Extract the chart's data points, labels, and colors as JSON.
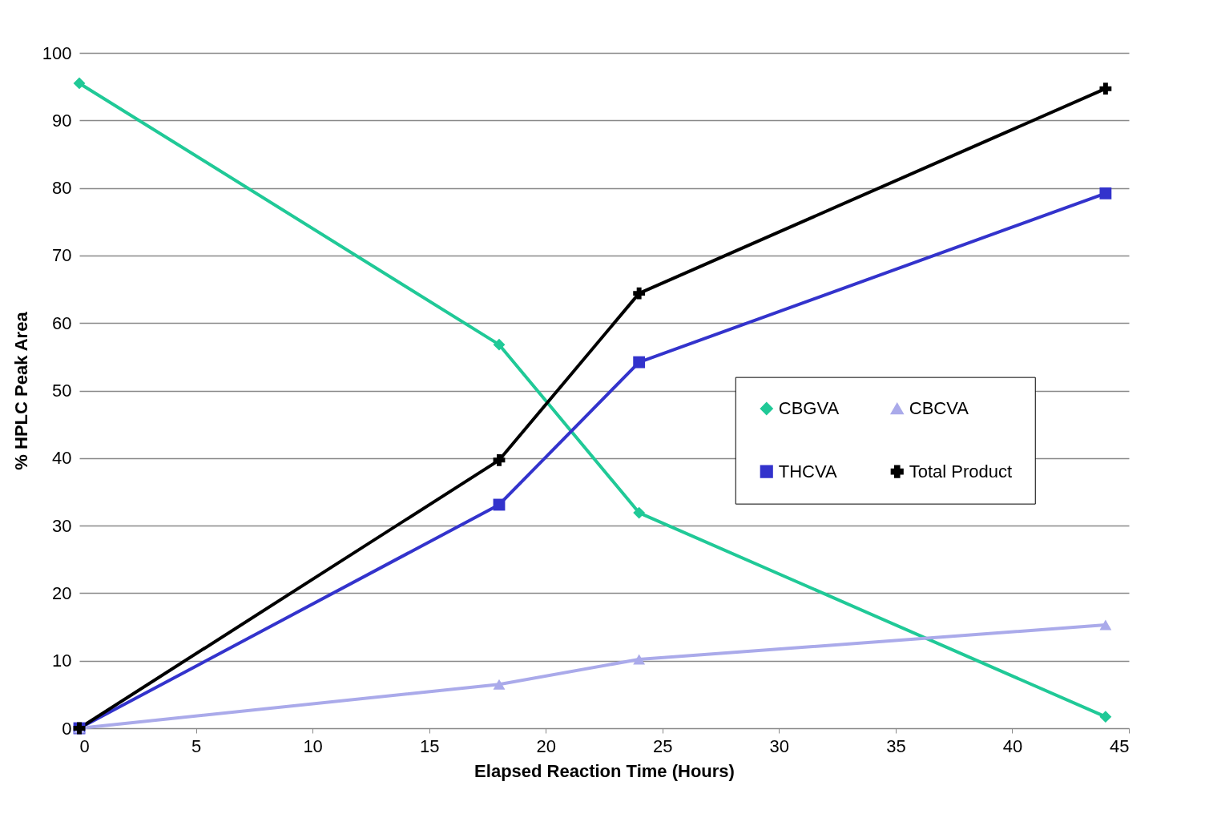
{
  "chart_data": {
    "type": "line",
    "xlabel": "Elapsed Reaction Time (Hours)",
    "ylabel": "% HPLC Peak Area",
    "x": [
      0,
      18,
      24,
      44
    ],
    "series": [
      {
        "name": "CBGVA",
        "color": "#20c997",
        "marker": "diamond",
        "values": [
          95.5,
          56.8,
          31.9,
          1.7
        ]
      },
      {
        "name": "THCVA",
        "color": "#3333cc",
        "marker": "square",
        "values": [
          0,
          33.1,
          54.2,
          79.2
        ]
      },
      {
        "name": "CBCVA",
        "color": "#aaaaea",
        "marker": "triangle",
        "values": [
          0,
          6.5,
          10.2,
          15.3
        ]
      },
      {
        "name": "Total Product",
        "color": "#000000",
        "marker": "cross",
        "values": [
          0,
          39.7,
          64.4,
          94.7
        ]
      }
    ],
    "xlim": [
      0,
      45
    ],
    "xticks": [
      0,
      5,
      10,
      15,
      20,
      25,
      30,
      35,
      40,
      45
    ],
    "ylim": [
      0,
      100
    ],
    "yticks": [
      0,
      10,
      20,
      30,
      40,
      50,
      60,
      70,
      80,
      90,
      100
    ],
    "grid": "y",
    "legend": "right",
    "line_style": "solid"
  }
}
